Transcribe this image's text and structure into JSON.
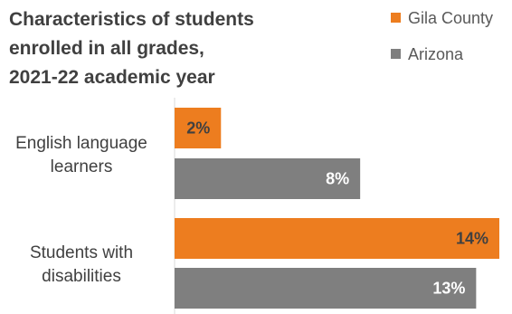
{
  "chart_data": {
    "type": "bar",
    "orientation": "horizontal",
    "title_lines": [
      "Characteristics  of students",
      "enrolled in all grades,",
      "2021-22 academic year"
    ],
    "categories": [
      {
        "id": "ell",
        "label_lines": [
          "English language",
          "learners"
        ]
      },
      {
        "id": "swd",
        "label_lines": [
          "Students with",
          "disabilities"
        ]
      }
    ],
    "series": [
      {
        "name": "Gila County",
        "color": "#ED7D1F",
        "label_color": "#404040",
        "values": [
          2,
          14
        ],
        "labels": [
          "2%",
          "14%"
        ]
      },
      {
        "name": "Arizona",
        "color": "#7F7F7F",
        "label_color": "#FFFFFF",
        "values": [
          8,
          13
        ],
        "labels": [
          "8%",
          "13%"
        ]
      }
    ],
    "value_unit": "%",
    "xlim": [
      0,
      14
    ],
    "legend_position": "top-right",
    "gridlines": false,
    "axis_line": "vertical category axis only"
  }
}
